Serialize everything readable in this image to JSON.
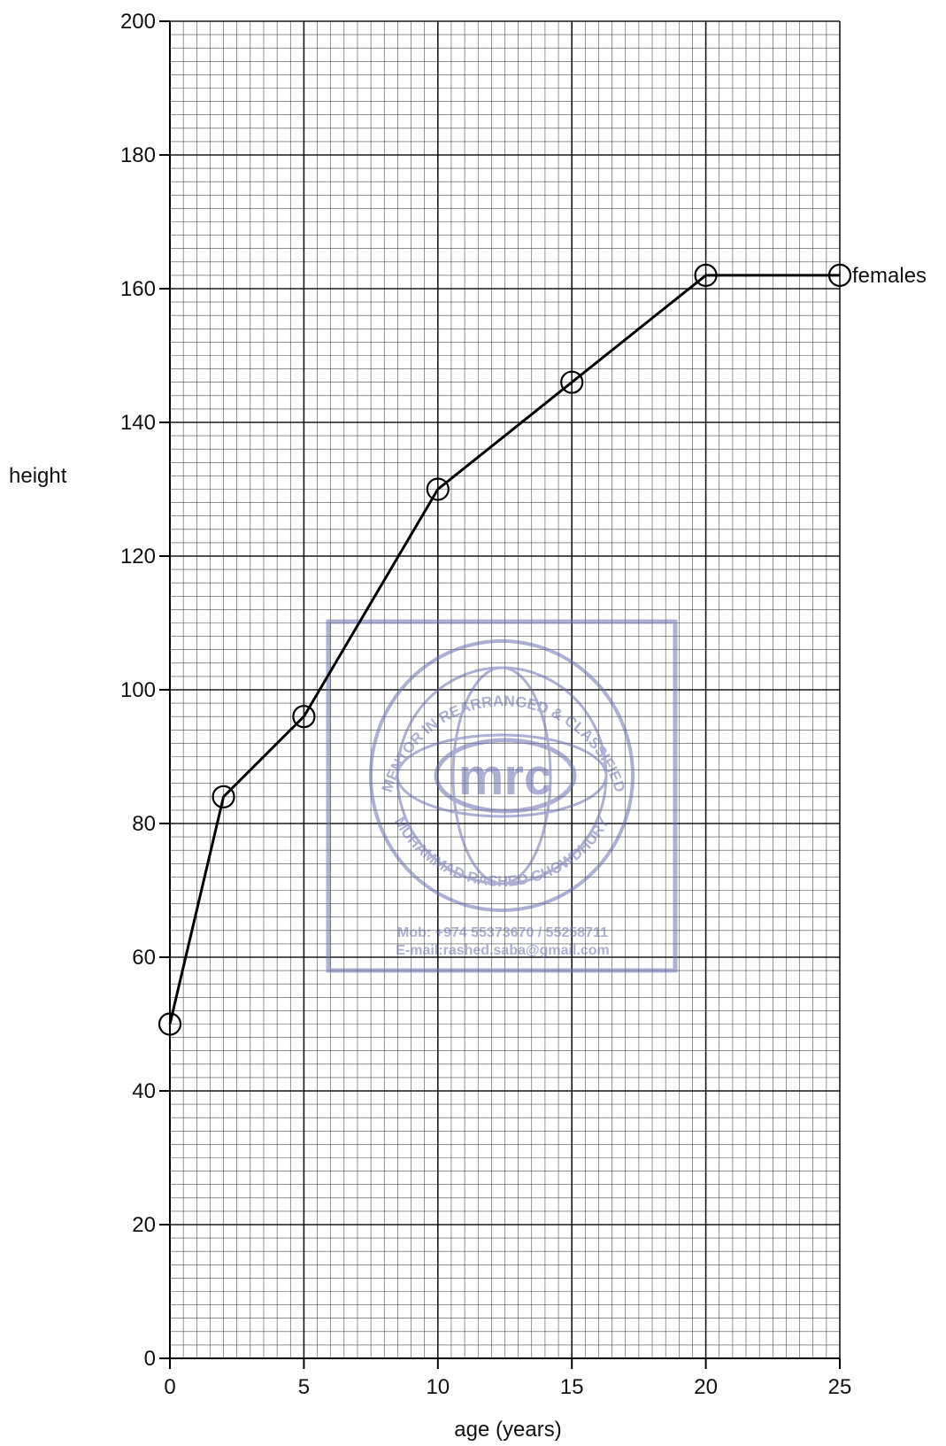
{
  "chart_data": {
    "type": "line",
    "xlabel": "age (years)",
    "ylabel": "height",
    "xlim": [
      0,
      25
    ],
    "ylim": [
      0,
      200
    ],
    "x_ticks": [
      0,
      5,
      10,
      15,
      20,
      25
    ],
    "y_ticks": [
      0,
      20,
      40,
      60,
      80,
      100,
      120,
      140,
      160,
      180,
      200
    ],
    "grid": true,
    "series": [
      {
        "name": "females",
        "marker": "circle",
        "x": [
          0,
          2,
          5,
          10,
          15,
          20,
          25
        ],
        "y": [
          50,
          84,
          96,
          130,
          146,
          162,
          162
        ]
      }
    ]
  },
  "watermark": {
    "logo_text": "mrc",
    "ring_text_top": "MENTOR IN REARRANGED & CLASSIFIED",
    "ring_text_bottom": "MUHAMMAD RASHED CHOWDHURY",
    "line1": "Mob:  +974 55373670 / 55258711",
    "line2": "E-mail:rashed.saba@gmail.com",
    "color": "#6b6fb0"
  },
  "colors": {
    "grid_minor": "#000000",
    "grid_major": "#000000",
    "line": "#000000"
  }
}
